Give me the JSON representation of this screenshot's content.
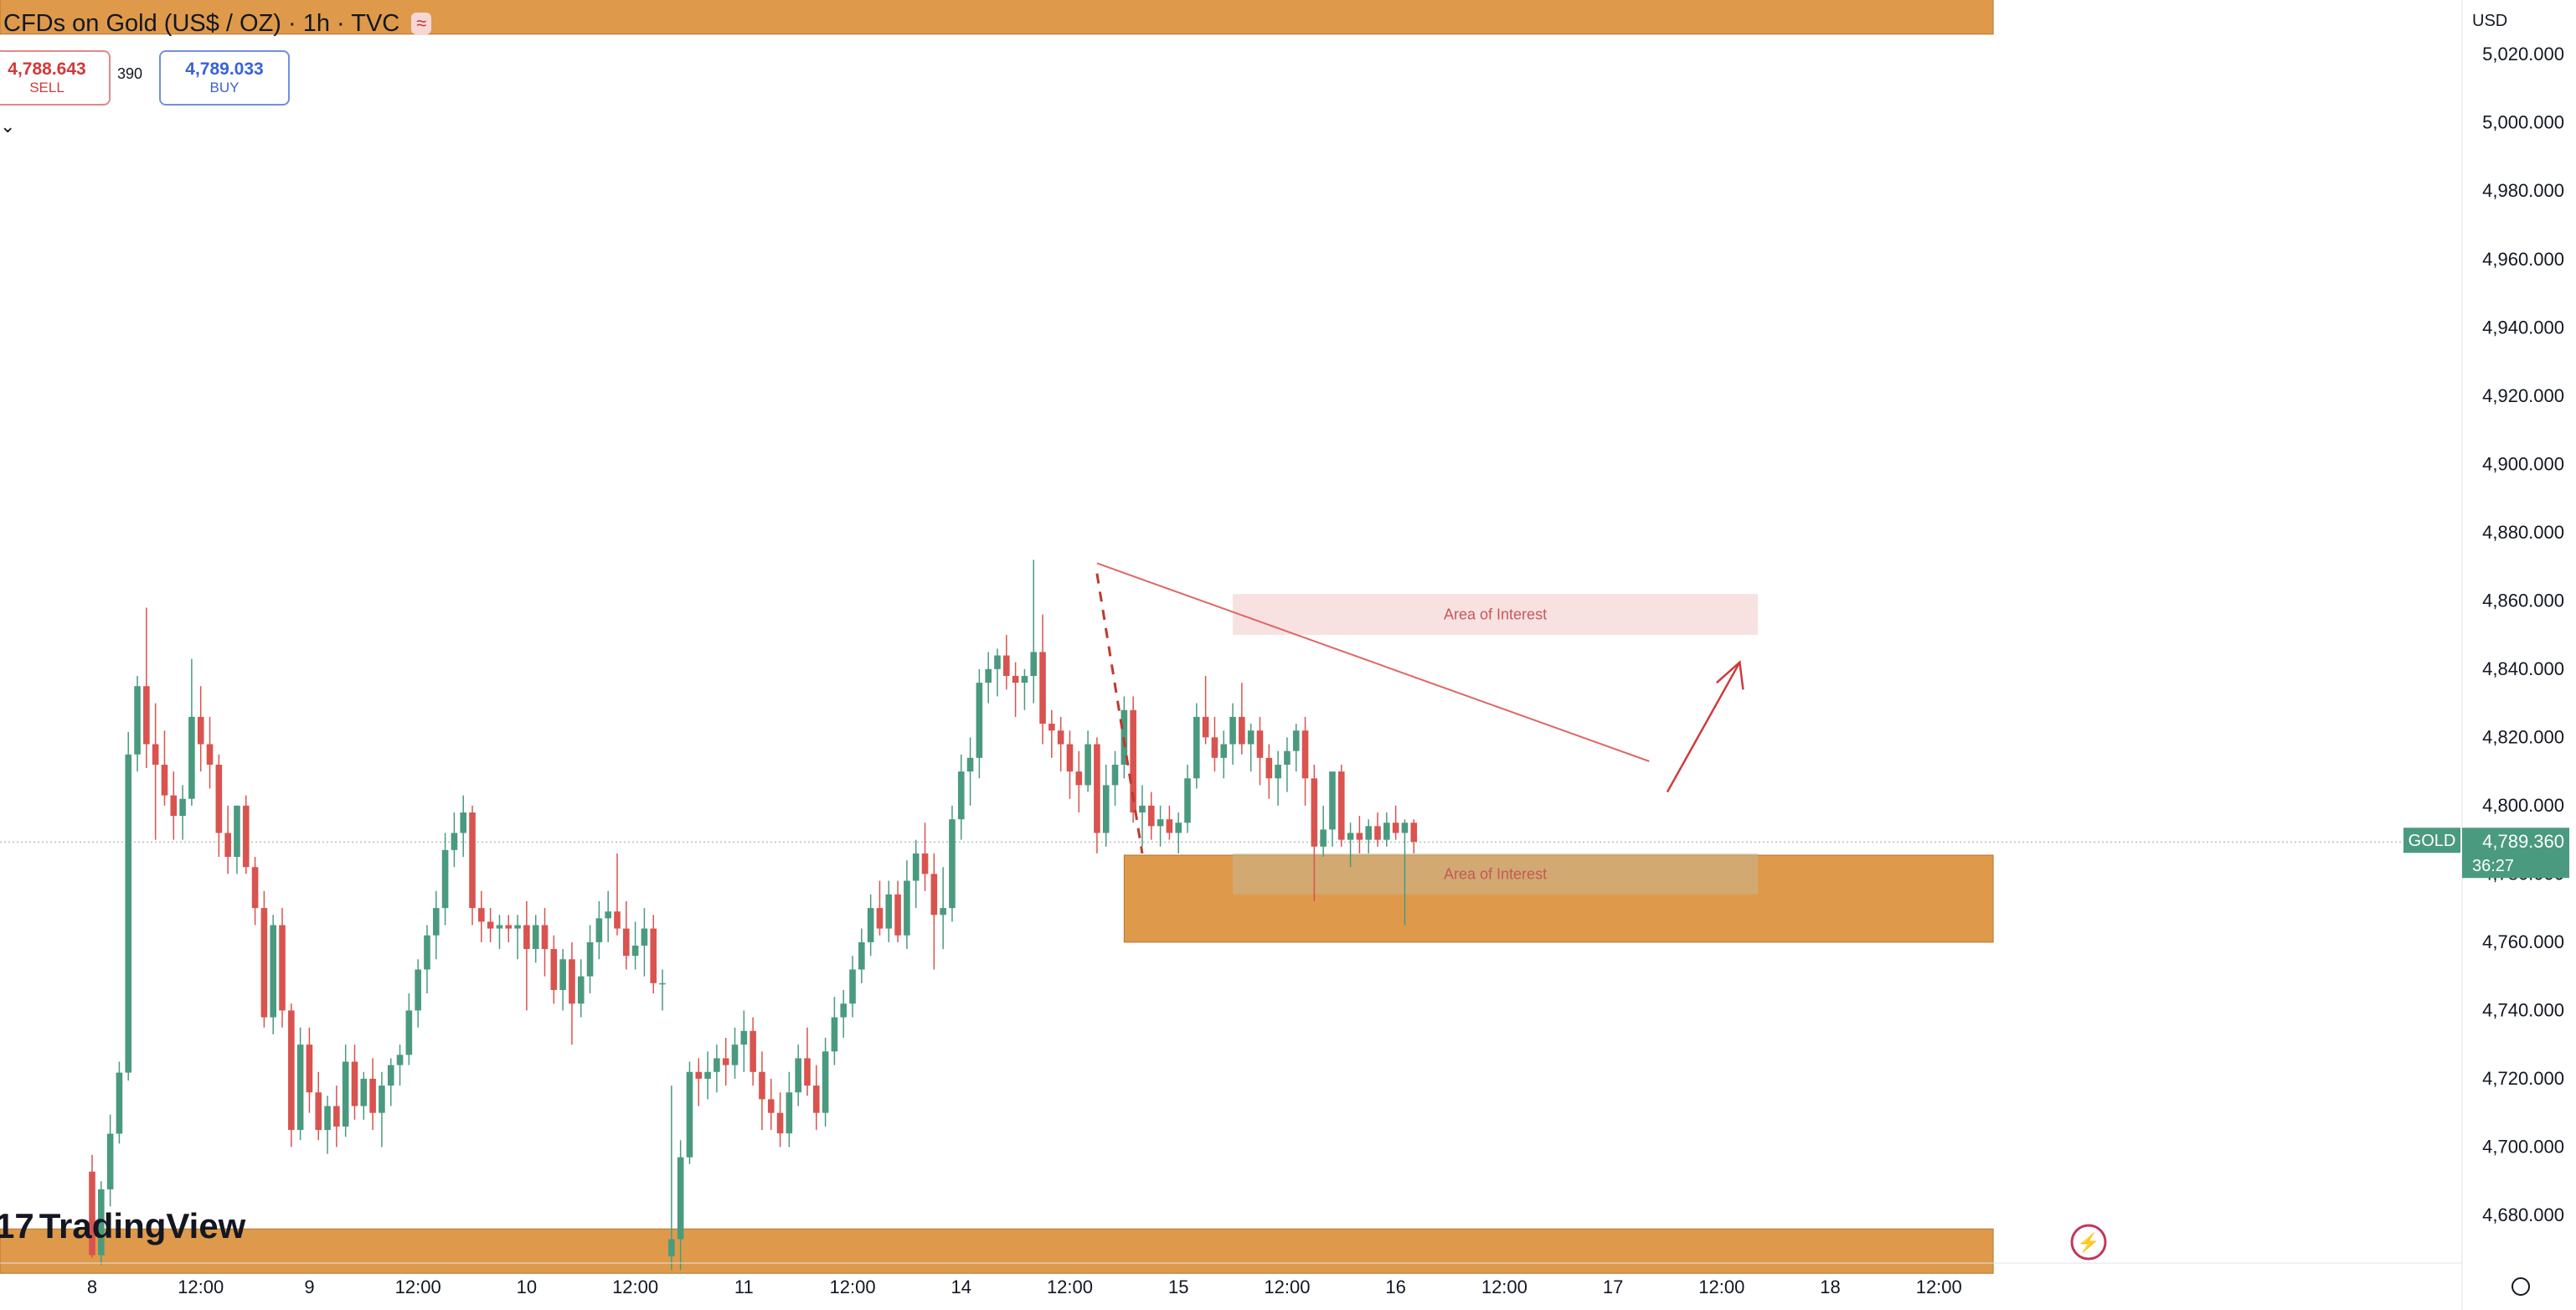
{
  "header": {
    "title": "CFDs on Gold (US$ / OZ) · 1h · TVC",
    "badge": "≈",
    "sell_price": "4,788.643",
    "sell_label": "SELL",
    "spread": "390",
    "buy_price": "4,789.033",
    "buy_label": "BUY",
    "currency": "USD"
  },
  "branding": {
    "logo": "TradingView"
  },
  "price_tag": {
    "symbol": "GOLD",
    "price": "4,789.360",
    "countdown": "36:27"
  },
  "chart_data": {
    "type": "candlestick",
    "title": "CFDs on Gold (US$ / OZ) · 1h · TVC",
    "ylim": [
      4666,
      5036
    ],
    "y_ticks": [
      4680,
      4700,
      4720,
      4740,
      4760,
      4780,
      4800,
      4820,
      4840,
      4860,
      4880,
      4900,
      4920,
      4940,
      4960,
      4980,
      5000,
      5020
    ],
    "x_ticks": [
      {
        "label": "8",
        "x": 0
      },
      {
        "label": "12:00",
        "x": 12
      },
      {
        "label": "9",
        "x": 24
      },
      {
        "label": "12:00",
        "x": 36
      },
      {
        "label": "10",
        "x": 48
      },
      {
        "label": "12:00",
        "x": 60
      },
      {
        "label": "11",
        "x": 72
      },
      {
        "label": "12:00",
        "x": 84
      },
      {
        "label": "14",
        "x": 96
      },
      {
        "label": "12:00",
        "x": 108
      },
      {
        "label": "15",
        "x": 120
      },
      {
        "label": "12:00",
        "x": 132
      },
      {
        "label": "16",
        "x": 144
      },
      {
        "label": "12:00",
        "x": 156
      },
      {
        "label": "17",
        "x": 168
      },
      {
        "label": "12:00",
        "x": 180
      },
      {
        "label": "18",
        "x": 192
      },
      {
        "label": "12:00",
        "x": 204
      }
    ],
    "last_price": 4789.36,
    "zones": [
      {
        "color": "#de9a4a",
        "y1": 5026,
        "y2": 5040,
        "x1": -20,
        "x2": 210
      },
      {
        "color": "#de9a4a",
        "y1": 4760,
        "y2": 4785.5,
        "x1": 114,
        "x2": 210
      },
      {
        "color": "#de9a4a",
        "y1": 4663,
        "y2": 4676,
        "x1": -20,
        "x2": 210
      }
    ],
    "areas_of_interest": [
      {
        "label": "Area of Interest",
        "y1": 4850,
        "y2": 4862,
        "x1": 126,
        "x2": 184,
        "color": "#f2c9c9"
      },
      {
        "label": "Area of Interest",
        "y1": 4774,
        "y2": 4786,
        "x1": 126,
        "x2": 184,
        "color": "#c9b690"
      }
    ],
    "candles": [
      {
        "o": 4692.8,
        "h": 4697.7,
        "l": 4667.5,
        "c": 4668.3
      },
      {
        "o": 4668.3,
        "h": 4690.0,
        "l": 4665.5,
        "c": 4687.6
      },
      {
        "o": 4687.6,
        "h": 4709.5,
        "l": 4682.6,
        "c": 4703.9
      },
      {
        "o": 4703.9,
        "h": 4725.0,
        "l": 4701.0,
        "c": 4721.8
      },
      {
        "o": 4721.8,
        "h": 4821.6,
        "l": 4719.5,
        "c": 4815.0
      },
      {
        "o": 4815.0,
        "h": 4838.0,
        "l": 4810.0,
        "c": 4835.0
      },
      {
        "o": 4835.0,
        "h": 4858.0,
        "l": 4811.0,
        "c": 4818.0
      },
      {
        "o": 4818.0,
        "h": 4830.0,
        "l": 4790.0,
        "c": 4812.0
      },
      {
        "o": 4812.0,
        "h": 4822.0,
        "l": 4800.0,
        "c": 4803.0
      },
      {
        "o": 4803.0,
        "h": 4810.0,
        "l": 4790.0,
        "c": 4797.0
      },
      {
        "o": 4797.0,
        "h": 4806.0,
        "l": 4790.0,
        "c": 4802.0
      },
      {
        "o": 4802.0,
        "h": 4843.0,
        "l": 4800.0,
        "c": 4826.0
      },
      {
        "o": 4826.0,
        "h": 4835.0,
        "l": 4810.0,
        "c": 4818.0
      },
      {
        "o": 4818.0,
        "h": 4826.0,
        "l": 4805.0,
        "c": 4812.0
      },
      {
        "o": 4812.0,
        "h": 4815.0,
        "l": 4785.0,
        "c": 4792.0
      },
      {
        "o": 4792.0,
        "h": 4800.0,
        "l": 4780.0,
        "c": 4785.0
      },
      {
        "o": 4785.0,
        "h": 4800.0,
        "l": 4780.0,
        "c": 4800.0
      },
      {
        "o": 4800.0,
        "h": 4803.0,
        "l": 4780.0,
        "c": 4782.0
      },
      {
        "o": 4782.0,
        "h": 4785.0,
        "l": 4765.0,
        "c": 4770.0
      },
      {
        "o": 4770.0,
        "h": 4775.0,
        "l": 4735.0,
        "c": 4738.0
      },
      {
        "o": 4738.0,
        "h": 4768.0,
        "l": 4733.0,
        "c": 4765.0
      },
      {
        "o": 4765.0,
        "h": 4770.0,
        "l": 4735.0,
        "c": 4740.0
      },
      {
        "o": 4740.0,
        "h": 4742.0,
        "l": 4700.0,
        "c": 4705.0
      },
      {
        "o": 4705.0,
        "h": 4735.0,
        "l": 4702.0,
        "c": 4730.0
      },
      {
        "o": 4730.0,
        "h": 4735.0,
        "l": 4710.0,
        "c": 4716.0
      },
      {
        "o": 4716.0,
        "h": 4722.0,
        "l": 4702.0,
        "c": 4705.0
      },
      {
        "o": 4705.0,
        "h": 4715.0,
        "l": 4698.0,
        "c": 4712.0
      },
      {
        "o": 4712.0,
        "h": 4718.0,
        "l": 4700.0,
        "c": 4706.0
      },
      {
        "o": 4706.0,
        "h": 4730.0,
        "l": 4703.0,
        "c": 4725.0
      },
      {
        "o": 4725.0,
        "h": 4730.0,
        "l": 4708.0,
        "c": 4712.0
      },
      {
        "o": 4712.0,
        "h": 4722.0,
        "l": 4708.0,
        "c": 4720.0
      },
      {
        "o": 4720.0,
        "h": 4726.0,
        "l": 4705.0,
        "c": 4710.0
      },
      {
        "o": 4710.0,
        "h": 4722.0,
        "l": 4700.0,
        "c": 4718.0
      },
      {
        "o": 4718.0,
        "h": 4726.0,
        "l": 4712.0,
        "c": 4724.0
      },
      {
        "o": 4724.0,
        "h": 4730.0,
        "l": 4718.0,
        "c": 4727.0
      },
      {
        "o": 4727.0,
        "h": 4745.0,
        "l": 4724.0,
        "c": 4740.0
      },
      {
        "o": 4740.0,
        "h": 4755.0,
        "l": 4735.0,
        "c": 4752.0
      },
      {
        "o": 4752.0,
        "h": 4765.0,
        "l": 4745.0,
        "c": 4762.0
      },
      {
        "o": 4762.0,
        "h": 4775.0,
        "l": 4755.0,
        "c": 4770.0
      },
      {
        "o": 4770.0,
        "h": 4792.0,
        "l": 4765.0,
        "c": 4787.0
      },
      {
        "o": 4787.0,
        "h": 4798.0,
        "l": 4782.0,
        "c": 4792.0
      },
      {
        "o": 4792.0,
        "h": 4803.0,
        "l": 4785.0,
        "c": 4798.0
      },
      {
        "o": 4798.0,
        "h": 4800.0,
        "l": 4765.0,
        "c": 4770.0
      },
      {
        "o": 4770.0,
        "h": 4775.0,
        "l": 4760.0,
        "c": 4766.0
      },
      {
        "o": 4766.0,
        "h": 4770.0,
        "l": 4760.0,
        "c": 4764.0
      },
      {
        "o": 4764.0,
        "h": 4768.0,
        "l": 4758.0,
        "c": 4765.0
      },
      {
        "o": 4765.0,
        "h": 4768.0,
        "l": 4760.0,
        "c": 4764.0
      },
      {
        "o": 4764.0,
        "h": 4768.0,
        "l": 4755.0,
        "c": 4765.0
      },
      {
        "o": 4765.0,
        "h": 4772.0,
        "l": 4740.0,
        "c": 4758.0
      },
      {
        "o": 4758.0,
        "h": 4768.0,
        "l": 4754.0,
        "c": 4765.0
      },
      {
        "o": 4765.0,
        "h": 4770.0,
        "l": 4750.0,
        "c": 4758.0
      },
      {
        "o": 4758.0,
        "h": 4762.0,
        "l": 4742.0,
        "c": 4746.0
      },
      {
        "o": 4746.0,
        "h": 4758.0,
        "l": 4740.0,
        "c": 4755.0
      },
      {
        "o": 4755.0,
        "h": 4760.0,
        "l": 4730.0,
        "c": 4742.0
      },
      {
        "o": 4742.0,
        "h": 4755.0,
        "l": 4738.0,
        "c": 4750.0
      },
      {
        "o": 4750.0,
        "h": 4765.0,
        "l": 4745.0,
        "c": 4760.0
      },
      {
        "o": 4760.0,
        "h": 4772.0,
        "l": 4755.0,
        "c": 4767.0
      },
      {
        "o": 4767.0,
        "h": 4775.0,
        "l": 4760.0,
        "c": 4769.0
      },
      {
        "o": 4769.0,
        "h": 4786.0,
        "l": 4762.0,
        "c": 4764.0
      },
      {
        "o": 4764.0,
        "h": 4772.0,
        "l": 4752.0,
        "c": 4756.0
      },
      {
        "o": 4756.0,
        "h": 4766.0,
        "l": 4752.0,
        "c": 4759.0
      },
      {
        "o": 4759.0,
        "h": 4770.0,
        "l": 4750.0,
        "c": 4764.0
      },
      {
        "o": 4764.0,
        "h": 4768.0,
        "l": 4745.0,
        "c": 4748.0
      },
      {
        "o": 4748.0,
        "h": 4752.0,
        "l": 4740.0,
        "c": 4748.0
      },
      {
        "o": 4668.0,
        "h": 4718.0,
        "l": 4664.0,
        "c": 4673.0
      },
      {
        "o": 4673.0,
        "h": 4702.0,
        "l": 4664.0,
        "c": 4697.0
      },
      {
        "o": 4697.0,
        "h": 4725.0,
        "l": 4695.0,
        "c": 4722.0
      },
      {
        "o": 4722.0,
        "h": 4726.0,
        "l": 4712.0,
        "c": 4720.0
      },
      {
        "o": 4720.0,
        "h": 4728.0,
        "l": 4714.0,
        "c": 4722.0
      },
      {
        "o": 4722.0,
        "h": 4730.0,
        "l": 4716.0,
        "c": 4726.0
      },
      {
        "o": 4726.0,
        "h": 4732.0,
        "l": 4718.0,
        "c": 4724.0
      },
      {
        "o": 4724.0,
        "h": 4735.0,
        "l": 4720.0,
        "c": 4730.0
      },
      {
        "o": 4730.0,
        "h": 4740.0,
        "l": 4722.0,
        "c": 4734.0
      },
      {
        "o": 4734.0,
        "h": 4738.0,
        "l": 4718.0,
        "c": 4722.0
      },
      {
        "o": 4722.0,
        "h": 4728.0,
        "l": 4705.0,
        "c": 4714.0
      },
      {
        "o": 4714.0,
        "h": 4720.0,
        "l": 4705.0,
        "c": 4710.0
      },
      {
        "o": 4710.0,
        "h": 4716.0,
        "l": 4700.0,
        "c": 4704.0
      },
      {
        "o": 4704.0,
        "h": 4722.0,
        "l": 4700.0,
        "c": 4716.0
      },
      {
        "o": 4716.0,
        "h": 4730.0,
        "l": 4712.0,
        "c": 4726.0
      },
      {
        "o": 4726.0,
        "h": 4735.0,
        "l": 4715.0,
        "c": 4718.0
      },
      {
        "o": 4718.0,
        "h": 4724.0,
        "l": 4705.0,
        "c": 4710.0
      },
      {
        "o": 4710.0,
        "h": 4732.0,
        "l": 4706.0,
        "c": 4728.0
      },
      {
        "o": 4728.0,
        "h": 4744.0,
        "l": 4724.0,
        "c": 4738.0
      },
      {
        "o": 4738.0,
        "h": 4746.0,
        "l": 4732.0,
        "c": 4742.0
      },
      {
        "o": 4742.0,
        "h": 4756.0,
        "l": 4738.0,
        "c": 4752.0
      },
      {
        "o": 4752.0,
        "h": 4764.0,
        "l": 4748.0,
        "c": 4760.0
      },
      {
        "o": 4760.0,
        "h": 4774.0,
        "l": 4756.0,
        "c": 4770.0
      },
      {
        "o": 4770.0,
        "h": 4778.0,
        "l": 4762.0,
        "c": 4764.0
      },
      {
        "o": 4764.0,
        "h": 4778.0,
        "l": 4760.0,
        "c": 4774.0
      },
      {
        "o": 4774.0,
        "h": 4778.0,
        "l": 4760.0,
        "c": 4762.0
      },
      {
        "o": 4762.0,
        "h": 4784.0,
        "l": 4758.0,
        "c": 4778.0
      },
      {
        "o": 4778.0,
        "h": 4790.0,
        "l": 4770.0,
        "c": 4786.0
      },
      {
        "o": 4786.0,
        "h": 4795.0,
        "l": 4775.0,
        "c": 4780.0
      },
      {
        "o": 4780.0,
        "h": 4786.0,
        "l": 4752.0,
        "c": 4768.0
      },
      {
        "o": 4768.0,
        "h": 4782.0,
        "l": 4758.0,
        "c": 4770.0
      },
      {
        "o": 4770.0,
        "h": 4800.0,
        "l": 4766.0,
        "c": 4796.0
      },
      {
        "o": 4796.0,
        "h": 4815.0,
        "l": 4790.0,
        "c": 4810.0
      },
      {
        "o": 4810.0,
        "h": 4820.0,
        "l": 4800.0,
        "c": 4814.0
      },
      {
        "o": 4814.0,
        "h": 4840.0,
        "l": 4808.0,
        "c": 4836.0
      },
      {
        "o": 4836.0,
        "h": 4845.0,
        "l": 4830.0,
        "c": 4840.0
      },
      {
        "o": 4840.0,
        "h": 4846.0,
        "l": 4832.0,
        "c": 4844.0
      },
      {
        "o": 4844.0,
        "h": 4850.0,
        "l": 4834.0,
        "c": 4838.0
      },
      {
        "o": 4838.0,
        "h": 4842.0,
        "l": 4826.0,
        "c": 4836.0
      },
      {
        "o": 4836.0,
        "h": 4840.0,
        "l": 4828.0,
        "c": 4838.0
      },
      {
        "o": 4838.0,
        "h": 4872.0,
        "l": 4830.0,
        "c": 4845.0
      },
      {
        "o": 4845.0,
        "h": 4856.0,
        "l": 4818.0,
        "c": 4824.0
      },
      {
        "o": 4824.0,
        "h": 4828.0,
        "l": 4814.0,
        "c": 4822.0
      },
      {
        "o": 4822.0,
        "h": 4826.0,
        "l": 4810.0,
        "c": 4818.0
      },
      {
        "o": 4818.0,
        "h": 4822.0,
        "l": 4802.0,
        "c": 4810.0
      },
      {
        "o": 4810.0,
        "h": 4816.0,
        "l": 4798.0,
        "c": 4806.0
      },
      {
        "o": 4806.0,
        "h": 4822.0,
        "l": 4804.0,
        "c": 4818.0
      },
      {
        "o": 4818.0,
        "h": 4820.0,
        "l": 4786.0,
        "c": 4792.0
      },
      {
        "o": 4792.0,
        "h": 4812.0,
        "l": 4788.0,
        "c": 4806.0
      },
      {
        "o": 4806.0,
        "h": 4816.0,
        "l": 4800.0,
        "c": 4812.0
      },
      {
        "o": 4812.0,
        "h": 4832.0,
        "l": 4808.0,
        "c": 4828.0
      },
      {
        "o": 4828.0,
        "h": 4832.0,
        "l": 4795.0,
        "c": 4798.0
      },
      {
        "o": 4798.0,
        "h": 4806.0,
        "l": 4788.0,
        "c": 4800.0
      },
      {
        "o": 4800.0,
        "h": 4804.0,
        "l": 4790.0,
        "c": 4794.0
      },
      {
        "o": 4794.0,
        "h": 4800.0,
        "l": 4788.0,
        "c": 4796.0
      },
      {
        "o": 4796.0,
        "h": 4800.0,
        "l": 4790.0,
        "c": 4792.0
      },
      {
        "o": 4792.0,
        "h": 4798.0,
        "l": 4786.0,
        "c": 4795.0
      },
      {
        "o": 4795.0,
        "h": 4812.0,
        "l": 4792.0,
        "c": 4808.0
      },
      {
        "o": 4808.0,
        "h": 4830.0,
        "l": 4805.0,
        "c": 4826.0
      },
      {
        "o": 4826.0,
        "h": 4838.0,
        "l": 4818.0,
        "c": 4820.0
      },
      {
        "o": 4820.0,
        "h": 4826.0,
        "l": 4810.0,
        "c": 4814.0
      },
      {
        "o": 4814.0,
        "h": 4822.0,
        "l": 4808.0,
        "c": 4818.0
      },
      {
        "o": 4818.0,
        "h": 4830.0,
        "l": 4812.0,
        "c": 4826.0
      },
      {
        "o": 4826.0,
        "h": 4836.0,
        "l": 4815.0,
        "c": 4818.0
      },
      {
        "o": 4818.0,
        "h": 4824.0,
        "l": 4810.0,
        "c": 4822.0
      },
      {
        "o": 4822.0,
        "h": 4826.0,
        "l": 4806.0,
        "c": 4814.0
      },
      {
        "o": 4814.0,
        "h": 4818.0,
        "l": 4802.0,
        "c": 4808.0
      },
      {
        "o": 4808.0,
        "h": 4816.0,
        "l": 4800.0,
        "c": 4812.0
      },
      {
        "o": 4812.0,
        "h": 4820.0,
        "l": 4804.0,
        "c": 4816.0
      },
      {
        "o": 4816.0,
        "h": 4824.0,
        "l": 4810.0,
        "c": 4822.0
      },
      {
        "o": 4822.0,
        "h": 4826.0,
        "l": 4800.0,
        "c": 4808.0
      },
      {
        "o": 4808.0,
        "h": 4812.0,
        "l": 4772.0,
        "c": 4788.0
      },
      {
        "o": 4788.0,
        "h": 4800.0,
        "l": 4785.0,
        "c": 4793.0
      },
      {
        "o": 4793.0,
        "h": 4808.0,
        "l": 4788.0,
        "c": 4810.0
      },
      {
        "o": 4810.0,
        "h": 4812.0,
        "l": 4788.0,
        "c": 4790.0
      },
      {
        "o": 4790.0,
        "h": 4795.0,
        "l": 4782.0,
        "c": 4792.0
      },
      {
        "o": 4792.0,
        "h": 4797.0,
        "l": 4786.0,
        "c": 4790.0
      },
      {
        "o": 4790.0,
        "h": 4796.0,
        "l": 4786.0,
        "c": 4794.0
      },
      {
        "o": 4794.0,
        "h": 4798.0,
        "l": 4788.0,
        "c": 4790.0
      },
      {
        "o": 4790.0,
        "h": 4798.0,
        "l": 4788.0,
        "c": 4795.0
      },
      {
        "o": 4795.0,
        "h": 4800.0,
        "l": 4790.0,
        "c": 4792.0
      },
      {
        "o": 4792.0,
        "h": 4796.0,
        "l": 4765.0,
        "c": 4795.0
      },
      {
        "o": 4795.0,
        "h": 4796.0,
        "l": 4786.0,
        "c": 4789.4
      }
    ]
  }
}
